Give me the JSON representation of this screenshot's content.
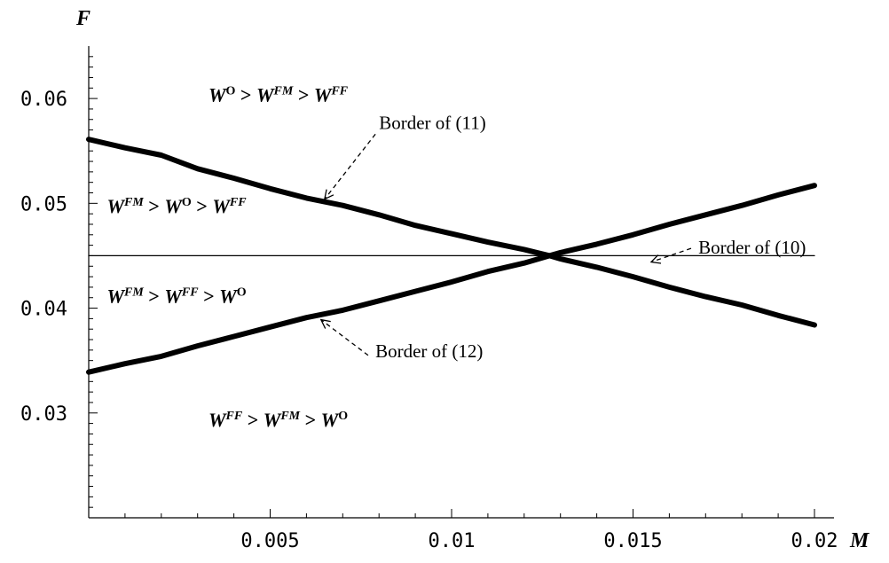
{
  "chart_data": {
    "type": "line",
    "xlabel": "M",
    "ylabel": "F",
    "xlim": [
      0,
      0.02
    ],
    "ylim": [
      0.02,
      0.065
    ],
    "x_ticks": [
      {
        "value": 0.005,
        "label": "0.005"
      },
      {
        "value": 0.01,
        "label": "0.01"
      },
      {
        "value": 0.015,
        "label": "0.015"
      },
      {
        "value": 0.02,
        "label": "0.02"
      }
    ],
    "y_ticks": [
      {
        "value": 0.03,
        "label": "0.03"
      },
      {
        "value": 0.04,
        "label": "0.04"
      },
      {
        "value": 0.05,
        "label": "0.05"
      },
      {
        "value": 0.06,
        "label": "0.06"
      }
    ],
    "series": [
      {
        "id": "border-11",
        "style": "thick",
        "x": [
          0,
          0.001,
          0.002,
          0.003,
          0.004,
          0.005,
          0.006,
          0.007,
          0.008,
          0.009,
          0.01,
          0.011,
          0.012,
          0.0127,
          0.013,
          0.014,
          0.015,
          0.016,
          0.017,
          0.018,
          0.019,
          0.02
        ],
        "y": [
          0.0561,
          0.0553,
          0.0546,
          0.0533,
          0.0524,
          0.0514,
          0.0505,
          0.0498,
          0.0489,
          0.0479,
          0.0471,
          0.0463,
          0.0456,
          0.045,
          0.0447,
          0.0439,
          0.043,
          0.042,
          0.0411,
          0.0403,
          0.0393,
          0.0384
        ]
      },
      {
        "id": "border-12",
        "style": "thick",
        "x": [
          0,
          0.001,
          0.002,
          0.003,
          0.004,
          0.005,
          0.006,
          0.007,
          0.008,
          0.009,
          0.01,
          0.011,
          0.012,
          0.0127,
          0.013,
          0.014,
          0.015,
          0.016,
          0.017,
          0.018,
          0.019,
          0.02
        ],
        "y": [
          0.0339,
          0.0347,
          0.0354,
          0.0364,
          0.0373,
          0.0382,
          0.0391,
          0.0398,
          0.0407,
          0.0416,
          0.0425,
          0.0435,
          0.0443,
          0.045,
          0.0453,
          0.0461,
          0.047,
          0.048,
          0.0489,
          0.0498,
          0.0508,
          0.0517
        ]
      },
      {
        "id": "border-10",
        "style": "thin",
        "x": [
          0,
          0.02
        ],
        "y": [
          0.045,
          0.045
        ]
      }
    ],
    "regions": [
      {
        "id": "region-top",
        "at": [
          0.0033,
          0.0597
        ],
        "parts": [
          [
            "W",
            ""
          ],
          [
            "O",
            "sup"
          ],
          [
            " > ",
            ""
          ],
          [
            "W",
            ""
          ],
          [
            "FM",
            "supi"
          ],
          [
            " > ",
            ""
          ],
          [
            "W",
            ""
          ],
          [
            "FF",
            "supi"
          ]
        ]
      },
      {
        "id": "region-upper-left",
        "at": [
          0.0005,
          0.0491
        ],
        "parts": [
          [
            "W",
            ""
          ],
          [
            "FM",
            "supi"
          ],
          [
            " > ",
            ""
          ],
          [
            "W",
            ""
          ],
          [
            "O",
            "sup"
          ],
          [
            " > ",
            ""
          ],
          [
            "W",
            ""
          ],
          [
            "FF",
            "supi"
          ]
        ]
      },
      {
        "id": "region-lower-left",
        "at": [
          0.0005,
          0.0405
        ],
        "parts": [
          [
            "W",
            ""
          ],
          [
            "FM",
            "supi"
          ],
          [
            " > ",
            ""
          ],
          [
            "W",
            ""
          ],
          [
            "FF",
            "supi"
          ],
          [
            " > ",
            ""
          ],
          [
            "W",
            ""
          ],
          [
            "O",
            "sup"
          ]
        ]
      },
      {
        "id": "region-bottom",
        "at": [
          0.0033,
          0.0287
        ],
        "parts": [
          [
            "W",
            ""
          ],
          [
            "FF",
            "supi"
          ],
          [
            " > ",
            ""
          ],
          [
            "W",
            ""
          ],
          [
            "FM",
            "supi"
          ],
          [
            " > ",
            ""
          ],
          [
            "W",
            ""
          ],
          [
            "O",
            "sup"
          ]
        ]
      }
    ],
    "annotations": [
      {
        "id": "border-11",
        "text": "Border of (11)",
        "text_at": [
          0.008,
          0.0571
        ],
        "arrow_from": [
          0.0079,
          0.0566
        ],
        "arrow_to": [
          0.0065,
          0.0504
        ]
      },
      {
        "id": "border-10",
        "text": "Border of (10)",
        "text_at": [
          0.0168,
          0.0452
        ],
        "arrow_from": [
          0.0166,
          0.0457
        ],
        "arrow_to": [
          0.0155,
          0.0444
        ]
      },
      {
        "id": "border-12",
        "text": "Border of (12)",
        "text_at": [
          0.0079,
          0.0353
        ],
        "arrow_from": [
          0.0077,
          0.0355
        ],
        "arrow_to": [
          0.0064,
          0.0389
        ]
      }
    ]
  }
}
